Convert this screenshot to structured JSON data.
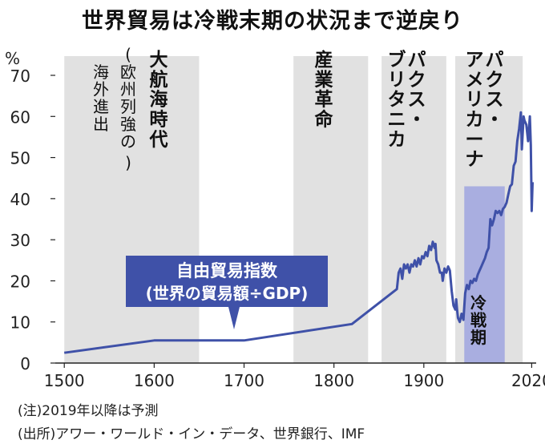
{
  "title": "世界貿易は冷戦末期の状況まで逆戻り",
  "notes": {
    "forecast": "(注)2019年以降は予測",
    "source": "(出所)アワー・ワールド・イン・データ、世界銀行、IMF"
  },
  "chart_data": {
    "type": "line",
    "title": "世界貿易は冷戦末期の状況まで逆戻り",
    "ylabel": "%",
    "xlabel": "",
    "xlim": [
      1490,
      2025
    ],
    "ylim": [
      0,
      70
    ],
    "x_ticks": [
      1500,
      1600,
      1700,
      1800,
      1900,
      2020
    ],
    "y_ticks": [
      0,
      10,
      20,
      30,
      40,
      50,
      60,
      70
    ],
    "grid": false,
    "annotation": {
      "line1": "自由貿易指数",
      "line2": "(世界の貿易額÷GDP)"
    },
    "eras": [
      {
        "label": "大航海時代",
        "sub": "(欧州列強の海外進出)",
        "start": 1500,
        "end": 1650,
        "color": "#e1e1e1"
      },
      {
        "label": "産業革命",
        "start": 1755,
        "end": 1838,
        "color": "#e1e1e1"
      },
      {
        "label": "パクス・ブリタニカ",
        "start": 1853,
        "end": 1925,
        "color": "#e1e1e1"
      },
      {
        "label": "パクス・アメリカーナ",
        "start": 1935,
        "end": 2010,
        "color": "#e1e1e1"
      },
      {
        "label": "冷戦期",
        "start": 1945,
        "end": 1990,
        "color": "#a9aee0",
        "bottom": 0,
        "top": 43
      }
    ],
    "series": [
      {
        "color": "#3f51a8",
        "points": [
          [
            1500,
            2.5
          ],
          [
            1600,
            5.5
          ],
          [
            1700,
            5.5
          ],
          [
            1820,
            9.5
          ],
          [
            1870,
            18.0
          ],
          [
            1872,
            22.0
          ],
          [
            1874,
            23.0
          ],
          [
            1876,
            20.5
          ],
          [
            1878,
            24.0
          ],
          [
            1880,
            23.0
          ],
          [
            1882,
            24.0
          ],
          [
            1884,
            22.0
          ],
          [
            1886,
            24.0
          ],
          [
            1888,
            23.5
          ],
          [
            1890,
            25.0
          ],
          [
            1892,
            23.5
          ],
          [
            1894,
            25.5
          ],
          [
            1896,
            24.0
          ],
          [
            1898,
            26.0
          ],
          [
            1900,
            25.5
          ],
          [
            1902,
            27.0
          ],
          [
            1904,
            26.0
          ],
          [
            1906,
            28.5
          ],
          [
            1908,
            27.5
          ],
          [
            1910,
            29.5
          ],
          [
            1912,
            28.0
          ],
          [
            1913,
            29.0
          ],
          [
            1914,
            25.0
          ],
          [
            1916,
            24.0
          ],
          [
            1918,
            22.0
          ],
          [
            1920,
            22.0
          ],
          [
            1921,
            20.0
          ],
          [
            1923,
            23.0
          ],
          [
            1925,
            22.0
          ],
          [
            1927,
            23.5
          ],
          [
            1929,
            22.5
          ],
          [
            1931,
            17.5
          ],
          [
            1933,
            14.0
          ],
          [
            1935,
            13.0
          ],
          [
            1936,
            15.5
          ],
          [
            1937,
            13.0
          ],
          [
            1938,
            11.0
          ],
          [
            1940,
            10.0
          ],
          [
            1942,
            12.0
          ],
          [
            1944,
            10.5
          ],
          [
            1946,
            17.0
          ],
          [
            1948,
            19.0
          ],
          [
            1950,
            18.0
          ],
          [
            1952,
            20.0
          ],
          [
            1954,
            19.5
          ],
          [
            1956,
            20.5
          ],
          [
            1958,
            20.0
          ],
          [
            1960,
            21.5
          ],
          [
            1962,
            22.5
          ],
          [
            1964,
            23.5
          ],
          [
            1966,
            24.5
          ],
          [
            1968,
            25.5
          ],
          [
            1970,
            27.0
          ],
          [
            1972,
            28.0
          ],
          [
            1974,
            35.0
          ],
          [
            1976,
            33.5
          ],
          [
            1978,
            35.0
          ],
          [
            1980,
            37.0
          ],
          [
            1982,
            36.5
          ],
          [
            1984,
            37.0
          ],
          [
            1986,
            36.0
          ],
          [
            1988,
            37.5
          ],
          [
            1990,
            38.0
          ],
          [
            1992,
            39.0
          ],
          [
            1994,
            41.0
          ],
          [
            1996,
            43.0
          ],
          [
            1998,
            43.5
          ],
          [
            2000,
            48.0
          ],
          [
            2002,
            49.0
          ],
          [
            2004,
            54.0
          ],
          [
            2006,
            57.0
          ],
          [
            2008,
            61.0
          ],
          [
            2009,
            52.0
          ],
          [
            2010,
            56.0
          ],
          [
            2011,
            60.0
          ],
          [
            2012,
            59.0
          ],
          [
            2014,
            58.0
          ],
          [
            2015,
            56.0
          ],
          [
            2016,
            54.0
          ],
          [
            2017,
            57.0
          ],
          [
            2018,
            60.0
          ],
          [
            2019,
            53.0
          ],
          [
            2020,
            37.0
          ],
          [
            2021,
            44.0
          ]
        ]
      }
    ]
  }
}
